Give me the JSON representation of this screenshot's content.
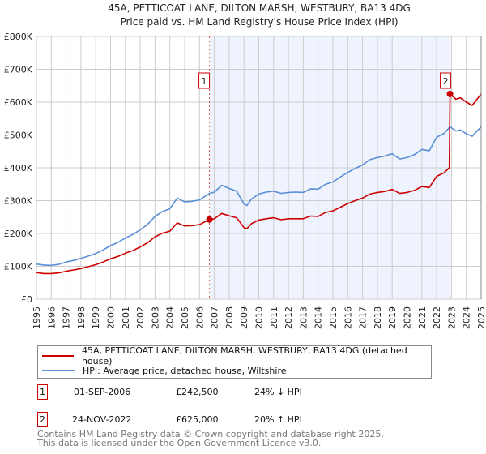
{
  "chart_data": {
    "type": "line",
    "title": "45A, PETTICOAT LANE, DILTON MARSH, WESTBURY, BA13 4DG",
    "subtitle": "Price paid vs. HM Land Registry's House Price Index (HPI)",
    "xlim": [
      1995,
      2025
    ],
    "ylim": [
      0,
      800000
    ],
    "y_ticks": [
      {
        "v": 0,
        "label": "£0"
      },
      {
        "v": 100000,
        "label": "£100K"
      },
      {
        "v": 200000,
        "label": "£200K"
      },
      {
        "v": 300000,
        "label": "£300K"
      },
      {
        "v": 400000,
        "label": "£400K"
      },
      {
        "v": 500000,
        "label": "£500K"
      },
      {
        "v": 600000,
        "label": "£600K"
      },
      {
        "v": 700000,
        "label": "£700K"
      },
      {
        "v": 800000,
        "label": "£800K"
      }
    ],
    "x_ticks": [
      "1995",
      "1996",
      "1997",
      "1998",
      "1999",
      "2000",
      "2001",
      "2002",
      "2003",
      "2004",
      "2005",
      "2006",
      "2007",
      "2008",
      "2009",
      "2010",
      "2011",
      "2012",
      "2013",
      "2014",
      "2015",
      "2016",
      "2017",
      "2018",
      "2019",
      "2020",
      "2021",
      "2022",
      "2023",
      "2024",
      "2025"
    ],
    "grid": true,
    "shaded_range": [
      2006.67,
      2022.9
    ],
    "series": [
      {
        "name": "45A, PETTICOAT LANE, DILTON MARSH, WESTBURY, BA13 4DG (detached house)",
        "color": "#cc0000",
        "x": [
          1995,
          1995.5,
          1996,
          1996.5,
          1997,
          1997.5,
          1998,
          1998.5,
          1999,
          1999.5,
          2000,
          2000.5,
          2001,
          2001.5,
          2002,
          2002.5,
          2003,
          2003.5,
          2004,
          2004.5,
          2005,
          2005.5,
          2006,
          2006.67,
          2007,
          2007.5,
          2008,
          2008.5,
          2009,
          2009.2,
          2009.5,
          2010,
          2010.5,
          2011,
          2011.5,
          2012,
          2012.5,
          2013,
          2013.5,
          2014,
          2014.5,
          2015,
          2015.5,
          2016,
          2016.5,
          2017,
          2017.5,
          2018,
          2018.5,
          2019,
          2019.5,
          2020,
          2020.5,
          2021,
          2021.5,
          2022,
          2022.5,
          2022.85,
          2022.9,
          2023.3,
          2023.6,
          2024,
          2024.4,
          2025
        ],
        "y": [
          81,
          78,
          78,
          80,
          85,
          89,
          93,
          99,
          105,
          113,
          123,
          130,
          140,
          148,
          159,
          172,
          190,
          201,
          207,
          232,
          223,
          224,
          227,
          242.5,
          245,
          261,
          254,
          248,
          218,
          215,
          230,
          241,
          245,
          248,
          242,
          245,
          245,
          245,
          253,
          252,
          264,
          269,
          280,
          291,
          300,
          308,
          320,
          325,
          328,
          334,
          322,
          325,
          331,
          343,
          340,
          374,
          385,
          400,
          625,
          609,
          613,
          600,
          590,
          625
        ]
      },
      {
        "name": "HPI: Average price, detached house, Wiltshire",
        "color": "#5b8fd6",
        "x": [
          1995,
          1995.5,
          1996,
          1996.5,
          1997,
          1997.5,
          1998,
          1998.5,
          1999,
          1999.5,
          2000,
          2000.5,
          2001,
          2001.5,
          2002,
          2002.5,
          2003,
          2003.5,
          2004,
          2004.5,
          2005,
          2005.5,
          2006,
          2006.67,
          2007,
          2007.5,
          2008,
          2008.5,
          2009,
          2009.2,
          2009.5,
          2010,
          2010.5,
          2011,
          2011.5,
          2012,
          2012.5,
          2013,
          2013.5,
          2014,
          2014.5,
          2015,
          2015.5,
          2016,
          2016.5,
          2017,
          2017.5,
          2018,
          2018.5,
          2019,
          2019.5,
          2020,
          2020.5,
          2021,
          2021.5,
          2022,
          2022.5,
          2022.9,
          2023.3,
          2023.6,
          2024,
          2024.4,
          2025
        ],
        "y": [
          107,
          104,
          103,
          106,
          113,
          118,
          124,
          131,
          139,
          150,
          163,
          173,
          186,
          197,
          211,
          228,
          252,
          267,
          275,
          308,
          296,
          298,
          302,
          322,
          326,
          347,
          337,
          329,
          290,
          285,
          305,
          320,
          326,
          329,
          322,
          325,
          326,
          325,
          336,
          335,
          350,
          357,
          372,
          386,
          398,
          409,
          425,
          431,
          436,
          443,
          427,
          431,
          440,
          456,
          452,
          493,
          505,
          525,
          512,
          515,
          504,
          496,
          525
        ]
      }
    ],
    "y_units": "thousands GBP",
    "annotations": [
      {
        "label": "1",
        "x": 2006.67,
        "y": 242.5
      },
      {
        "label": "2",
        "x": 2022.9,
        "y": 625
      }
    ]
  },
  "legend": {
    "property": "45A, PETTICOAT LANE, DILTON MARSH, WESTBURY, BA13 4DG (detached house)",
    "hpi": "HPI: Average price, detached house, Wiltshire"
  },
  "sales": [
    {
      "num": "1",
      "date": "01-SEP-2006",
      "price": "£242,500",
      "hpi": "24% ↓ HPI"
    },
    {
      "num": "2",
      "date": "24-NOV-2022",
      "price": "£625,000",
      "hpi": "20% ↑ HPI"
    }
  ],
  "footer": {
    "line1": "Contains HM Land Registry data © Crown copyright and database right 2025.",
    "line2": "This data is licensed under the Open Government Licence v3.0."
  }
}
